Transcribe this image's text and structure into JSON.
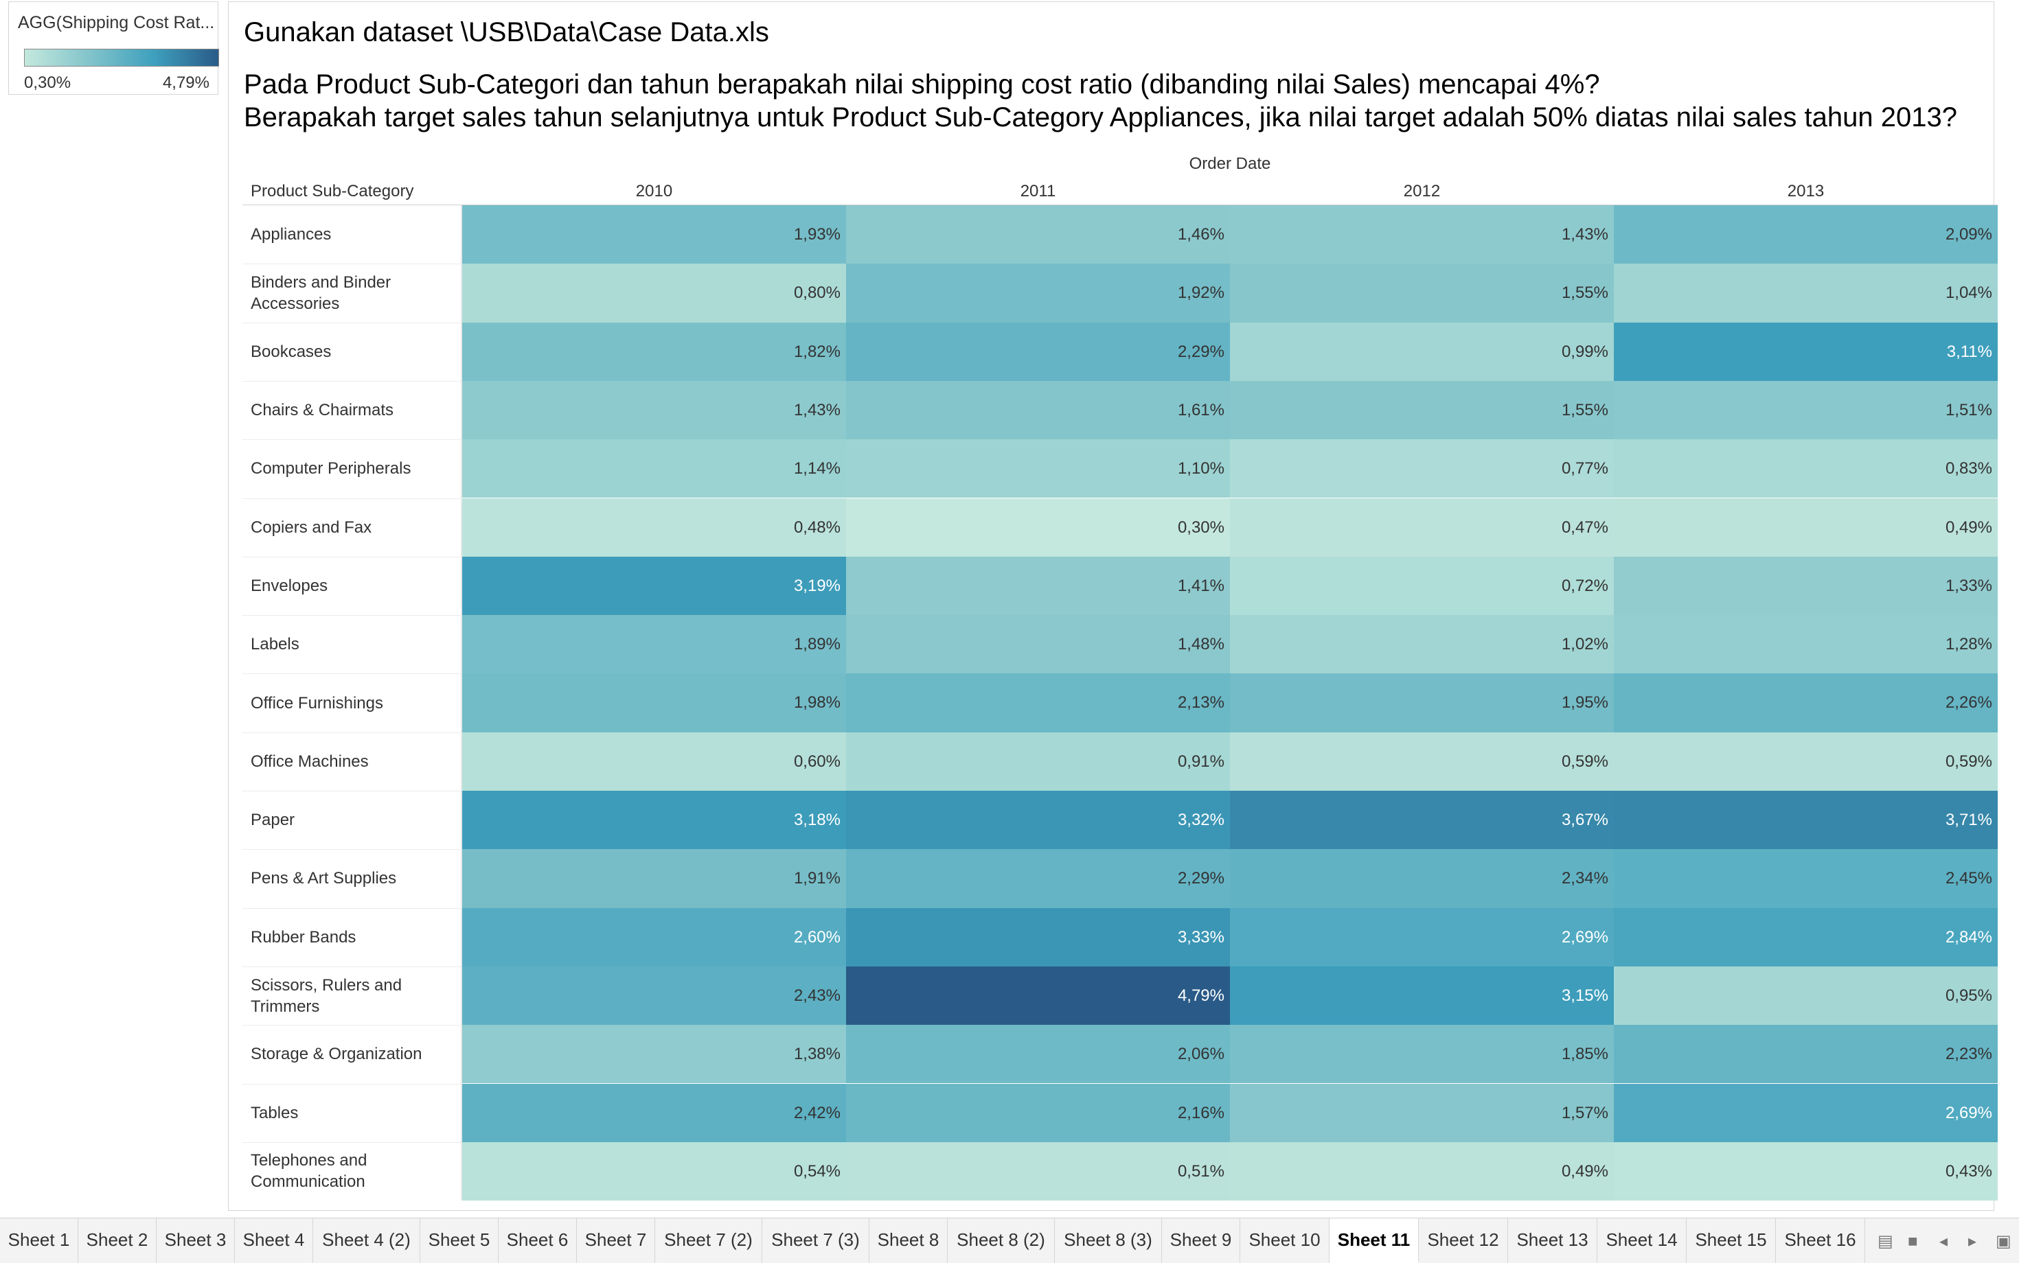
{
  "legend": {
    "title": "AGG(Shipping Cost Rat...",
    "min_label": "0,30%",
    "max_label": "4,79%",
    "min_value": 0.3,
    "max_value": 4.79
  },
  "worksheet": {
    "title_line1": "Gunakan dataset \\USB\\Data\\Case Data.xls",
    "title_line2": "Pada Product Sub-Categori dan tahun berapakah nilai shipping cost ratio (dibanding nilai Sales) mencapai 4%?",
    "title_line3": "Berapakah target sales tahun selanjutnya untuk Product Sub-Category Appliances, jika nilai target adalah 50% diatas nilai sales tahun 2013?"
  },
  "chart_data": {
    "type": "heatmap",
    "row_header": "Product Sub-Category",
    "column_group": "Order Date",
    "columns": [
      "2010",
      "2011",
      "2012",
      "2013"
    ],
    "color_range": [
      0.3,
      4.79
    ],
    "rows": [
      {
        "label": "Appliances",
        "values": [
          1.93,
          1.46,
          1.43,
          2.09
        ],
        "display": [
          "1,93%",
          "1,46%",
          "1,43%",
          "2,09%"
        ]
      },
      {
        "label": "Binders and Binder Accessories",
        "values": [
          0.8,
          1.92,
          1.55,
          1.04
        ],
        "display": [
          "0,80%",
          "1,92%",
          "1,55%",
          "1,04%"
        ]
      },
      {
        "label": "Bookcases",
        "values": [
          1.82,
          2.29,
          0.99,
          3.11
        ],
        "display": [
          "1,82%",
          "2,29%",
          "0,99%",
          "3,11%"
        ]
      },
      {
        "label": "Chairs & Chairmats",
        "values": [
          1.43,
          1.61,
          1.55,
          1.51
        ],
        "display": [
          "1,43%",
          "1,61%",
          "1,55%",
          "1,51%"
        ]
      },
      {
        "label": "Computer Peripherals",
        "values": [
          1.14,
          1.1,
          0.77,
          0.83
        ],
        "display": [
          "1,14%",
          "1,10%",
          "0,77%",
          "0,83%"
        ]
      },
      {
        "label": "Copiers and Fax",
        "values": [
          0.48,
          0.3,
          0.47,
          0.49
        ],
        "display": [
          "0,48%",
          "0,30%",
          "0,47%",
          "0,49%"
        ]
      },
      {
        "label": "Envelopes",
        "values": [
          3.19,
          1.41,
          0.72,
          1.33
        ],
        "display": [
          "3,19%",
          "1,41%",
          "0,72%",
          "1,33%"
        ]
      },
      {
        "label": "Labels",
        "values": [
          1.89,
          1.48,
          1.02,
          1.28
        ],
        "display": [
          "1,89%",
          "1,48%",
          "1,02%",
          "1,28%"
        ]
      },
      {
        "label": "Office Furnishings",
        "values": [
          1.98,
          2.13,
          1.95,
          2.26
        ],
        "display": [
          "1,98%",
          "2,13%",
          "1,95%",
          "2,26%"
        ]
      },
      {
        "label": "Office Machines",
        "values": [
          0.6,
          0.91,
          0.59,
          0.59
        ],
        "display": [
          "0,60%",
          "0,91%",
          "0,59%",
          "0,59%"
        ]
      },
      {
        "label": "Paper",
        "values": [
          3.18,
          3.32,
          3.67,
          3.71
        ],
        "display": [
          "3,18%",
          "3,32%",
          "3,67%",
          "3,71%"
        ]
      },
      {
        "label": "Pens & Art Supplies",
        "values": [
          1.91,
          2.29,
          2.34,
          2.45
        ],
        "display": [
          "1,91%",
          "2,29%",
          "2,34%",
          "2,45%"
        ]
      },
      {
        "label": "Rubber Bands",
        "values": [
          2.6,
          3.33,
          2.69,
          2.84
        ],
        "display": [
          "2,60%",
          "3,33%",
          "2,69%",
          "2,84%"
        ]
      },
      {
        "label": "Scissors, Rulers and Trimmers",
        "values": [
          2.43,
          4.79,
          3.15,
          0.95
        ],
        "display": [
          "2,43%",
          "4,79%",
          "3,15%",
          "0,95%"
        ]
      },
      {
        "label": "Storage & Organization",
        "values": [
          1.38,
          2.06,
          1.85,
          2.23
        ],
        "display": [
          "1,38%",
          "2,06%",
          "1,85%",
          "2,23%"
        ]
      },
      {
        "label": "Tables",
        "values": [
          2.42,
          2.16,
          1.57,
          2.69
        ],
        "display": [
          "2,42%",
          "2,16%",
          "1,57%",
          "2,69%"
        ]
      },
      {
        "label": "Telephones and Communication",
        "values": [
          0.54,
          0.51,
          0.49,
          0.43
        ],
        "display": [
          "0,54%",
          "0,51%",
          "0,49%",
          "0,43%"
        ]
      }
    ]
  },
  "tabs": [
    {
      "label": "Sheet 1",
      "active": false
    },
    {
      "label": "Sheet 2",
      "active": false
    },
    {
      "label": "Sheet 3",
      "active": false
    },
    {
      "label": "Sheet 4",
      "active": false
    },
    {
      "label": "Sheet 4 (2)",
      "active": false
    },
    {
      "label": "Sheet 5",
      "active": false
    },
    {
      "label": "Sheet 6",
      "active": false
    },
    {
      "label": "Sheet 7",
      "active": false
    },
    {
      "label": "Sheet 7 (2)",
      "active": false
    },
    {
      "label": "Sheet 7 (3)",
      "active": false
    },
    {
      "label": "Sheet 8",
      "active": false
    },
    {
      "label": "Sheet 8 (2)",
      "active": false
    },
    {
      "label": "Sheet 8 (3)",
      "active": false
    },
    {
      "label": "Sheet 9",
      "active": false
    },
    {
      "label": "Sheet 10",
      "active": false
    },
    {
      "label": "Sheet 11",
      "active": true
    },
    {
      "label": "Sheet 12",
      "active": false
    },
    {
      "label": "Sheet 13",
      "active": false
    },
    {
      "label": "Sheet 14",
      "active": false
    },
    {
      "label": "Sheet 15",
      "active": false
    },
    {
      "label": "Sheet 16",
      "active": false
    }
  ],
  "tab_icons": [
    "show-filmstrip-icon",
    "show-tabs-icon",
    "previous-sheet-icon",
    "next-sheet-icon",
    "presentation-mode-icon"
  ],
  "colors": {
    "scale_low": "#c4e8dd",
    "scale_mid_low": "#82c4cb",
    "scale_mid_high": "#3ea0bd",
    "scale_high": "#2a5b88"
  }
}
